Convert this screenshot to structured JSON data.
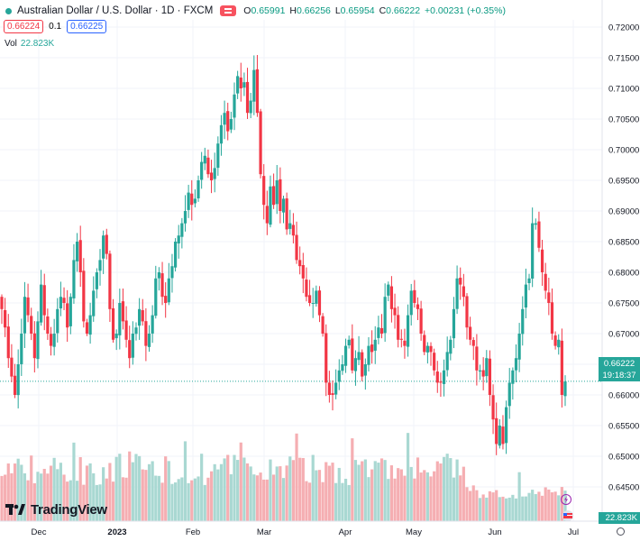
{
  "header": {
    "title": "Australian Dollar / U.S. Dollar · 1D · FXCM",
    "open_label": "O",
    "open": "0.65991",
    "high_label": "H",
    "high": "0.66256",
    "low_label": "L",
    "low": "0.65954",
    "close_label": "C",
    "close": "0.66222",
    "change": "+0.00231 (+0.35%)"
  },
  "trade": {
    "sell": "0.66224",
    "spread": "0.1",
    "buy": "0.66225"
  },
  "volume": {
    "label": "Vol",
    "value": "22.823K"
  },
  "price_badge": {
    "value": "0.66222",
    "countdown": "19:18:37"
  },
  "volume_badge": "22.823K",
  "logo": "TradingView",
  "colors": {
    "up": "#26a69a",
    "down": "#f23645",
    "vol_up": "#a9d8d2",
    "vol_down": "#f5aeb2"
  },
  "chart_data": {
    "type": "candlestick",
    "y_ticks": [
      "0.72000",
      "0.71500",
      "0.71000",
      "0.70500",
      "0.70000",
      "0.69500",
      "0.69000",
      "0.68500",
      "0.68000",
      "0.67500",
      "0.67000",
      "0.66500",
      "0.66000",
      "0.65500",
      "0.65000",
      "0.64500"
    ],
    "x_ticks": [
      "Dec",
      "2023",
      "Feb",
      "Mar",
      "Apr",
      "May",
      "Jun",
      "Jul"
    ],
    "ylim": [
      0.6425,
      0.7215
    ],
    "last_price": 0.66222,
    "closes": [
      0.674,
      0.671,
      0.666,
      0.663,
      0.66,
      0.665,
      0.67,
      0.676,
      0.673,
      0.67,
      0.666,
      0.672,
      0.678,
      0.673,
      0.67,
      0.668,
      0.67,
      0.674,
      0.676,
      0.675,
      0.671,
      0.676,
      0.682,
      0.685,
      0.68,
      0.672,
      0.67,
      0.673,
      0.677,
      0.68,
      0.682,
      0.686,
      0.683,
      0.674,
      0.669,
      0.67,
      0.675,
      0.672,
      0.669,
      0.666,
      0.67,
      0.671,
      0.674,
      0.672,
      0.668,
      0.67,
      0.673,
      0.679,
      0.68,
      0.676,
      0.675,
      0.679,
      0.681,
      0.685,
      0.686,
      0.688,
      0.69,
      0.693,
      0.691,
      0.692,
      0.695,
      0.698,
      0.699,
      0.696,
      0.695,
      0.697,
      0.701,
      0.704,
      0.706,
      0.703,
      0.705,
      0.709,
      0.712,
      0.71,
      0.711,
      0.706,
      0.708,
      0.713,
      0.706,
      0.696,
      0.691,
      0.688,
      0.694,
      0.691,
      0.695,
      0.69,
      0.692,
      0.687,
      0.688,
      0.686,
      0.682,
      0.681,
      0.679,
      0.676,
      0.675,
      0.675,
      0.677,
      0.673,
      0.67,
      0.662,
      0.66,
      0.66,
      0.662,
      0.664,
      0.665,
      0.668,
      0.669,
      0.664,
      0.666,
      0.667,
      0.663,
      0.665,
      0.668,
      0.667,
      0.669,
      0.671,
      0.67,
      0.676,
      0.678,
      0.674,
      0.673,
      0.669,
      0.669,
      0.668,
      0.673,
      0.677,
      0.675,
      0.674,
      0.67,
      0.667,
      0.668,
      0.667,
      0.664,
      0.662,
      0.662,
      0.664,
      0.667,
      0.669,
      0.674,
      0.679,
      0.678,
      0.676,
      0.671,
      0.669,
      0.668,
      0.664,
      0.664,
      0.663,
      0.666,
      0.66,
      0.656,
      0.652,
      0.655,
      0.652,
      0.658,
      0.662,
      0.664,
      0.666,
      0.67,
      0.674,
      0.678,
      0.679,
      0.688,
      0.688,
      0.684,
      0.68,
      0.677,
      0.675,
      0.67,
      0.668,
      0.669,
      0.66,
      0.6622
    ]
  }
}
